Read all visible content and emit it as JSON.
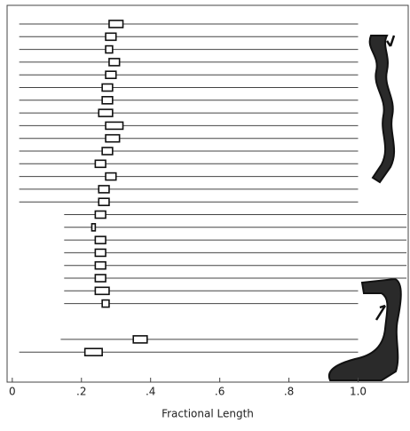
{
  "chart_data": {
    "type": "range",
    "xlabel": "Fractional Length",
    "xlim": [
      -0.015,
      1.145
    ],
    "xticks": [
      0,
      {
        "value": 0.2,
        "label": ".2"
      },
      {
        "value": 0.4,
        "label": ".4"
      },
      {
        "value": 0.6,
        "label": ".6"
      },
      {
        "value": 0.8,
        "label": ".8"
      },
      {
        "value": 1.0,
        "label": "1.0"
      }
    ],
    "rows": [
      {
        "line": [
          0.02,
          1.0
        ],
        "box": [
          0.28,
          0.32
        ]
      },
      {
        "line": [
          0.02,
          1.0
        ],
        "box": [
          0.27,
          0.3
        ]
      },
      {
        "line": [
          0.02,
          1.0
        ],
        "box": [
          0.27,
          0.29
        ]
      },
      {
        "line": [
          0.02,
          1.0
        ],
        "box": [
          0.28,
          0.31
        ]
      },
      {
        "line": [
          0.02,
          1.0
        ],
        "box": [
          0.27,
          0.3
        ]
      },
      {
        "line": [
          0.02,
          1.0
        ],
        "box": [
          0.26,
          0.29
        ]
      },
      {
        "line": [
          0.02,
          1.0
        ],
        "box": [
          0.26,
          0.29
        ]
      },
      {
        "line": [
          0.02,
          1.0
        ],
        "box": [
          0.25,
          0.29
        ]
      },
      {
        "line": [
          0.02,
          1.0
        ],
        "box": [
          0.27,
          0.32
        ]
      },
      {
        "line": [
          0.02,
          1.0
        ],
        "box": [
          0.27,
          0.31
        ]
      },
      {
        "line": [
          0.02,
          1.0
        ],
        "box": [
          0.26,
          0.29
        ]
      },
      {
        "line": [
          0.02,
          1.0
        ],
        "box": [
          0.24,
          0.27
        ]
      },
      {
        "line": [
          0.02,
          1.0
        ],
        "box": [
          0.27,
          0.3
        ]
      },
      {
        "line": [
          0.02,
          1.0
        ],
        "box": [
          0.25,
          0.28
        ]
      },
      {
        "line": [
          0.02,
          1.0
        ],
        "box": [
          0.25,
          0.28
        ]
      },
      {
        "line": [
          0.15,
          1.14
        ],
        "box": [
          0.24,
          0.27
        ]
      },
      {
        "line": [
          0.15,
          1.14
        ],
        "box": [
          0.23,
          0.24
        ]
      },
      {
        "line": [
          0.15,
          1.14
        ],
        "box": [
          0.24,
          0.27
        ]
      },
      {
        "line": [
          0.15,
          1.14
        ],
        "box": [
          0.24,
          0.27
        ]
      },
      {
        "line": [
          0.15,
          1.14
        ],
        "box": [
          0.24,
          0.27
        ]
      },
      {
        "line": [
          0.15,
          1.14
        ],
        "box": [
          0.24,
          0.27
        ]
      },
      {
        "line": [
          0.15,
          1.0
        ],
        "box": [
          0.24,
          0.28
        ]
      },
      {
        "line": [
          0.15,
          1.0
        ],
        "box": [
          0.26,
          0.28
        ]
      },
      {
        "line": [
          0.14,
          1.0
        ],
        "box": [
          0.35,
          0.39
        ]
      },
      {
        "line": [
          0.02,
          1.0
        ],
        "box": [
          0.21,
          0.26
        ]
      }
    ]
  }
}
